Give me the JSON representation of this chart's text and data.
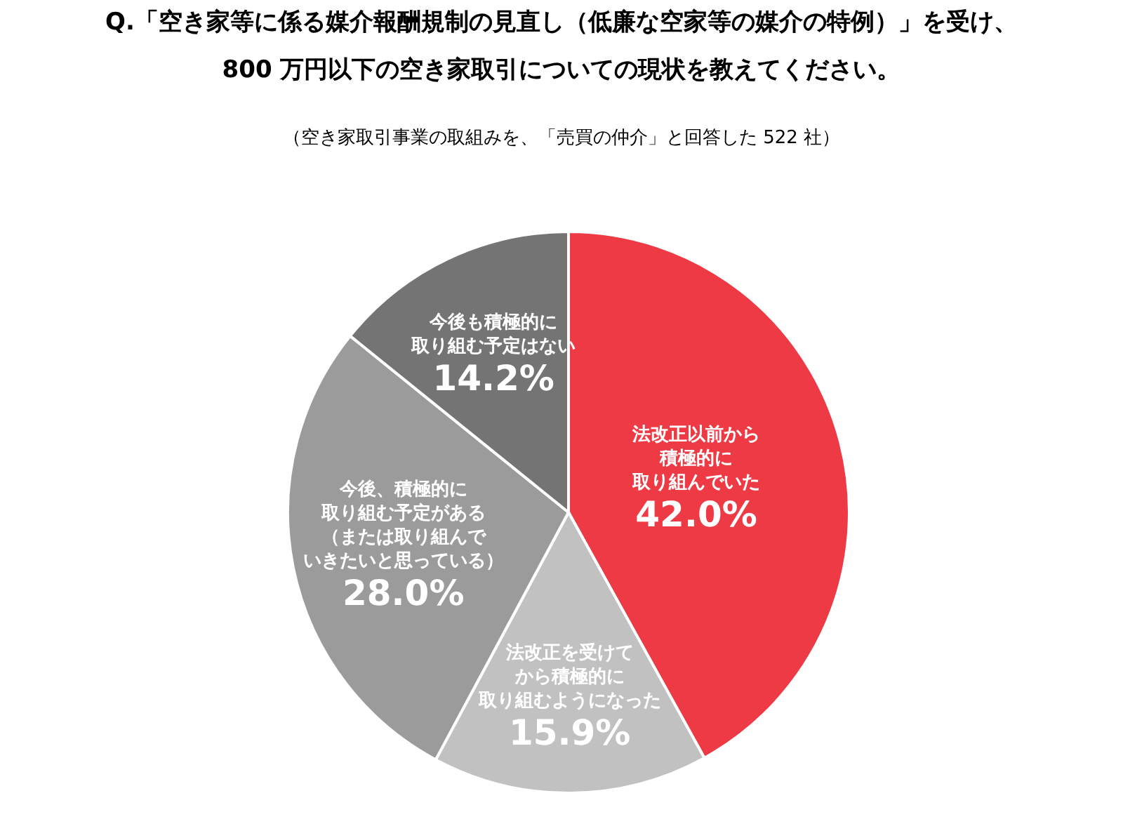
{
  "chart_data": {
    "type": "pie",
    "title": "Q.「空き家等に係る媒介報酬規制の見直し（低廉な空家等の媒介の特例）」を受け、\n800 万円以下の空き家取引についての現状を教えてください。",
    "subtitle": "（空き家取引事業の取組みを、「売買の仲介」と回答した 522 社）",
    "categories": [
      "法改正以前から積極的に取り組んでいた",
      "法改正を受けてから積極的に取り組むようになった",
      "今後、積極的に取り組む予定がある（または取り組んでいきたいと思っている）",
      "今後も積極的に取り組む予定はない"
    ],
    "values": [
      42.0,
      15.9,
      28.0,
      14.2
    ],
    "colors": [
      "#ee3a45",
      "#c1c1c1",
      "#9b9b9b",
      "#747474"
    ],
    "value_labels": [
      "42.0%",
      "15.9%",
      "28.0%",
      "14.2%"
    ]
  }
}
